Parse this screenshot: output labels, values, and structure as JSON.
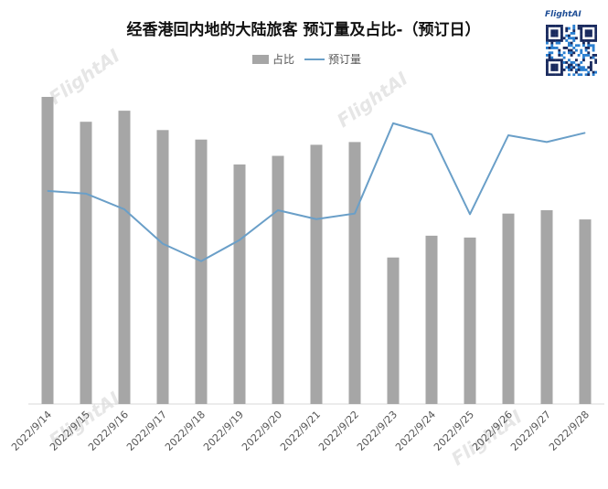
{
  "chart_data": {
    "type": "bar",
    "title": "经香港回内地的大陆旅客 预订量及占比-（预订日）",
    "categories": [
      "2022/9/14",
      "2022/9/15",
      "2022/9/16",
      "2022/9/17",
      "2022/9/18",
      "2022/9/19",
      "2022/9/20",
      "2022/9/21",
      "2022/9/22",
      "2022/9/23",
      "2022/9/24",
      "2022/9/25",
      "2022/9/26",
      "2022/9/27",
      "2022/9/28"
    ],
    "series": [
      {
        "name": "占比",
        "type": "bar",
        "color": "#a6a6a6",
        "values": [
          100,
          91.9,
          95.5,
          89.2,
          86.1,
          78.0,
          80.8,
          84.4,
          85.3,
          47.7,
          54.8,
          54.2,
          62.0,
          63.1,
          60.1
        ]
      },
      {
        "name": "预订量",
        "type": "line",
        "color": "#6a9fc8",
        "values": [
          69.4,
          68.5,
          63.4,
          52.2,
          46.5,
          53.4,
          63.1,
          60.2,
          62.0,
          91.4,
          87.8,
          61.8,
          87.5,
          85.3,
          88.3
        ]
      }
    ],
    "ylim": [
      0,
      100
    ],
    "legend_position": "top-center",
    "grid": false
  },
  "watermark": {
    "brand": "FlightAI"
  }
}
